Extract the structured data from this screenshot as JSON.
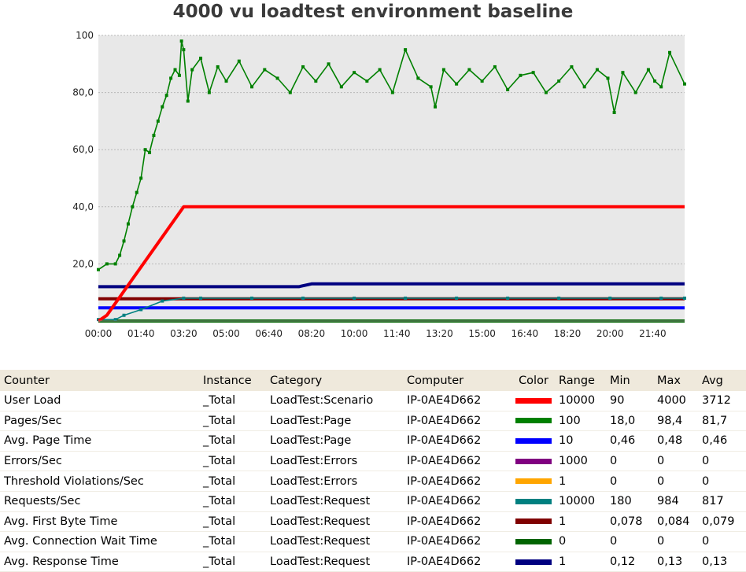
{
  "chart_data": {
    "type": "line",
    "title": "4000 vu loadtest environment baseline",
    "xlabel": "",
    "ylabel": "",
    "ylim": [
      0,
      100
    ],
    "xlim": [
      "00:00",
      "22:55"
    ],
    "grid": true,
    "yticks": [
      "20,0",
      "40,0",
      "60,0",
      "80,0",
      "100"
    ],
    "xticks": [
      "00:00",
      "01:40",
      "03:20",
      "05:00",
      "06:40",
      "08:20",
      "10:00",
      "11:40",
      "13:20",
      "15:00",
      "16:40",
      "18:20",
      "20:00",
      "21:40"
    ],
    "series": [
      {
        "name": "Pages/Sec",
        "color": "#008000",
        "markers": true,
        "x": [
          "00:00",
          "00:20",
          "00:40",
          "00:50",
          "01:00",
          "01:10",
          "01:20",
          "01:30",
          "01:40",
          "01:50",
          "02:00",
          "02:10",
          "02:20",
          "02:30",
          "02:40",
          "02:50",
          "03:00",
          "03:10",
          "03:15",
          "03:20",
          "03:30",
          "03:40",
          "04:00",
          "04:20",
          "04:40",
          "05:00",
          "05:30",
          "06:00",
          "06:30",
          "07:00",
          "07:30",
          "08:00",
          "08:30",
          "09:00",
          "09:30",
          "10:00",
          "10:30",
          "11:00",
          "11:30",
          "12:00",
          "12:30",
          "13:00",
          "13:10",
          "13:30",
          "14:00",
          "14:30",
          "15:00",
          "15:30",
          "16:00",
          "16:30",
          "17:00",
          "17:30",
          "18:00",
          "18:30",
          "19:00",
          "19:30",
          "19:55",
          "20:10",
          "20:30",
          "21:00",
          "21:30",
          "21:45",
          "22:00",
          "22:20",
          "22:55"
        ],
        "y": [
          18,
          20,
          20,
          23,
          28,
          34,
          40,
          45,
          50,
          60,
          59,
          65,
          70,
          75,
          79,
          85,
          88,
          86,
          98,
          95,
          77,
          88,
          92,
          80,
          89,
          84,
          91,
          82,
          88,
          85,
          80,
          89,
          84,
          90,
          82,
          87,
          84,
          88,
          80,
          95,
          85,
          82,
          75,
          88,
          83,
          88,
          84,
          89,
          81,
          86,
          87,
          80,
          84,
          89,
          82,
          88,
          85,
          73,
          87,
          80,
          88,
          84,
          82,
          94,
          83
        ]
      },
      {
        "name": "User Load",
        "color": "#ff0000",
        "markers": false,
        "x": [
          "00:00",
          "00:20",
          "03:20",
          "22:55"
        ],
        "y": [
          0,
          2,
          40,
          40
        ]
      },
      {
        "name": "Avg. Response Time",
        "color": "#000080",
        "markers": false,
        "x": [
          "00:00",
          "07:50",
          "08:20",
          "22:55"
        ],
        "y": [
          12,
          12,
          13,
          13
        ]
      },
      {
        "name": "Requests/Sec",
        "color": "#008080",
        "markers": true,
        "x": [
          "00:00",
          "00:40",
          "01:00",
          "01:40",
          "02:30",
          "03:20",
          "04:00",
          "06:00",
          "08:00",
          "10:00",
          "12:00",
          "14:00",
          "16:00",
          "18:00",
          "20:00",
          "22:00",
          "22:55"
        ],
        "y": [
          0.5,
          0.5,
          2,
          4,
          7,
          8,
          8,
          8,
          8,
          8,
          8,
          8,
          8,
          8,
          8,
          8,
          8
        ]
      },
      {
        "name": "Avg. First Byte Time",
        "color": "#800000",
        "markers": false,
        "x": [
          "00:00",
          "22:55"
        ],
        "y": [
          7.8,
          7.8
        ]
      },
      {
        "name": "Avg. Page Time",
        "color": "#0000ff",
        "markers": false,
        "x": [
          "00:00",
          "22:55"
        ],
        "y": [
          4.6,
          4.6
        ]
      },
      {
        "name": "Avg. Connection Wait Time",
        "color": "#006400",
        "markers": false,
        "x": [
          "00:00",
          "22:55"
        ],
        "y": [
          0,
          0
        ]
      }
    ]
  },
  "table": {
    "headers": {
      "counter": "Counter",
      "instance": "Instance",
      "category": "Category",
      "computer": "Computer",
      "color": "Color",
      "range": "Range",
      "min": "Min",
      "max": "Max",
      "avg": "Avg"
    },
    "rows": [
      {
        "counter": "User Load",
        "instance": "_Total",
        "category": "LoadTest:Scenario",
        "computer": "IP-0AE4D662",
        "color": "#ff0000",
        "range": "10000",
        "min": "90",
        "max": "4000",
        "avg": "3712"
      },
      {
        "counter": "Pages/Sec",
        "instance": "_Total",
        "category": "LoadTest:Page",
        "computer": "IP-0AE4D662",
        "color": "#008000",
        "range": "100",
        "min": "18,0",
        "max": "98,4",
        "avg": "81,7"
      },
      {
        "counter": "Avg. Page Time",
        "instance": "_Total",
        "category": "LoadTest:Page",
        "computer": "IP-0AE4D662",
        "color": "#0000ff",
        "range": "10",
        "min": "0,46",
        "max": "0,48",
        "avg": "0,46"
      },
      {
        "counter": "Errors/Sec",
        "instance": "_Total",
        "category": "LoadTest:Errors",
        "computer": "IP-0AE4D662",
        "color": "#800080",
        "range": "1000",
        "min": "0",
        "max": "0",
        "avg": "0"
      },
      {
        "counter": "Threshold Violations/Sec",
        "instance": "_Total",
        "category": "LoadTest:Errors",
        "computer": "IP-0AE4D662",
        "color": "#ffa500",
        "range": "1",
        "min": "0",
        "max": "0",
        "avg": "0"
      },
      {
        "counter": "Requests/Sec",
        "instance": "_Total",
        "category": "LoadTest:Request",
        "computer": "IP-0AE4D662",
        "color": "#008080",
        "range": "10000",
        "min": "180",
        "max": "984",
        "avg": "817"
      },
      {
        "counter": "Avg. First Byte Time",
        "instance": "_Total",
        "category": "LoadTest:Request",
        "computer": "IP-0AE4D662",
        "color": "#800000",
        "range": "1",
        "min": "0,078",
        "max": "0,084",
        "avg": "0,079"
      },
      {
        "counter": "Avg. Connection Wait Time",
        "instance": "_Total",
        "category": "LoadTest:Request",
        "computer": "IP-0AE4D662",
        "color": "#006400",
        "range": "0",
        "min": "0",
        "max": "0",
        "avg": "0"
      },
      {
        "counter": "Avg. Response Time",
        "instance": "_Total",
        "category": "LoadTest:Request",
        "computer": "IP-0AE4D662",
        "color": "#000080",
        "range": "1",
        "min": "0,12",
        "max": "0,13",
        "avg": "0,13"
      }
    ]
  }
}
